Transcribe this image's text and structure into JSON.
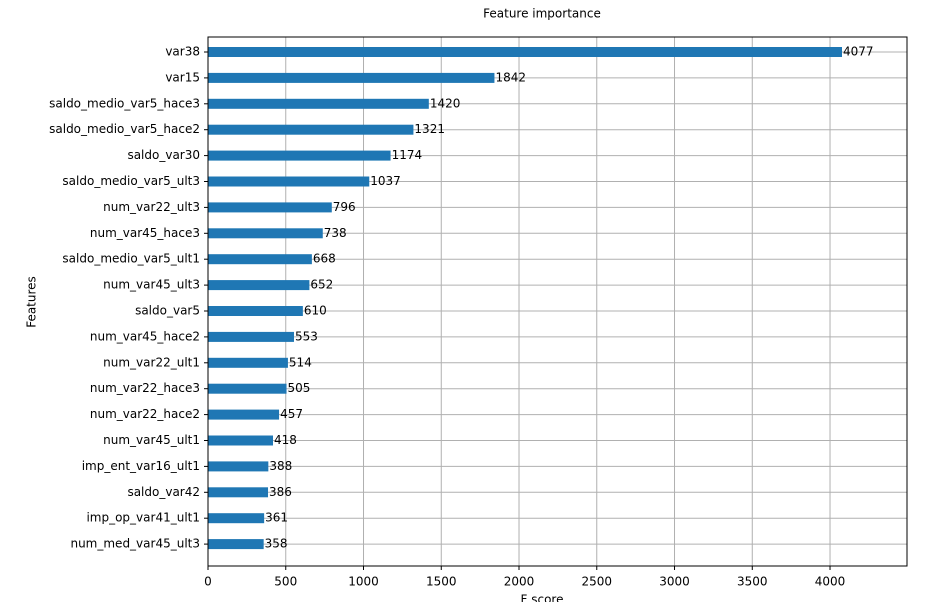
{
  "chart_data": {
    "type": "barh",
    "title": "Feature importance",
    "xlabel": "F score",
    "ylabel": "Features",
    "categories": [
      "var38",
      "var15",
      "saldo_medio_var5_hace3",
      "saldo_medio_var5_hace2",
      "saldo_var30",
      "saldo_medio_var5_ult3",
      "num_var22_ult3",
      "num_var45_hace3",
      "saldo_medio_var5_ult1",
      "num_var45_ult3",
      "saldo_var5",
      "num_var45_hace2",
      "num_var22_ult1",
      "num_var22_hace3",
      "num_var22_hace2",
      "num_var45_ult1",
      "imp_ent_var16_ult1",
      "saldo_var42",
      "imp_op_var41_ult1",
      "num_med_var45_ult3"
    ],
    "values": [
      4077,
      1842,
      1420,
      1321,
      1174,
      1037,
      796,
      738,
      668,
      652,
      610,
      553,
      514,
      505,
      457,
      418,
      388,
      386,
      361,
      358
    ],
    "color": "#1f77b4",
    "xlim": [
      0,
      4495
    ],
    "xticks": [
      0,
      500,
      1000,
      1500,
      2000,
      2500,
      3000,
      3500,
      4000
    ],
    "grid": true
  }
}
